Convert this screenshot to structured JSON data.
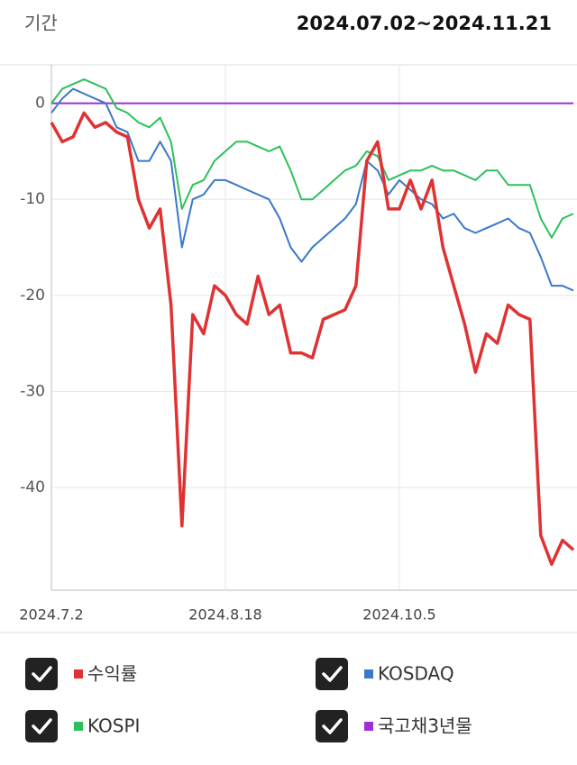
{
  "header": {
    "label": "기간",
    "period": "2024.07.02~2024.11.21"
  },
  "chart_data": {
    "type": "line",
    "categories": [
      "2024.7.2",
      null,
      null,
      null,
      null,
      null,
      null,
      null,
      null,
      null,
      null,
      null,
      null,
      null,
      null,
      null,
      "2024.8.18",
      null,
      null,
      null,
      null,
      null,
      null,
      null,
      null,
      null,
      null,
      null,
      null,
      null,
      null,
      null,
      "2024.10.5",
      null,
      null,
      null,
      null,
      null,
      null,
      null,
      null,
      null,
      null,
      null,
      null,
      null,
      null,
      null,
      null
    ],
    "series": [
      {
        "name": "수익률",
        "color": "#e03232",
        "values": [
          -2,
          -4,
          -3.5,
          -1,
          -2.5,
          -2,
          -3,
          -3.5,
          -10,
          -13,
          -11,
          -21,
          -44,
          -22,
          -24,
          -19,
          -20,
          -22,
          -23,
          -18,
          -22,
          -21,
          -26,
          -26,
          -26.5,
          -22.5,
          -22,
          -21.5,
          -19,
          -6,
          -4,
          -11,
          -11,
          -8,
          -11,
          -8,
          -15,
          -19,
          -23,
          -28,
          -24,
          -25,
          -21,
          -22,
          -22.5,
          -45,
          -48,
          -45.5,
          -46.5
        ]
      },
      {
        "name": "KOSDAQ",
        "color": "#3a78c8",
        "values": [
          -1,
          0.5,
          1.5,
          1,
          0.5,
          0,
          -2.5,
          -3,
          -6,
          -6,
          -4,
          -6,
          -15,
          -10,
          -9.5,
          -8,
          -8,
          -8.5,
          -9,
          -9.5,
          -10,
          -12,
          -15,
          -16.5,
          -15,
          -14,
          -13,
          -12,
          -10.5,
          -6,
          -7,
          -9.5,
          -8,
          -9,
          -10,
          -10.5,
          -12,
          -11.5,
          -13,
          -13.5,
          -13,
          -12.5,
          -12,
          -13,
          -13.5,
          -16,
          -19,
          -19,
          -19.5
        ]
      },
      {
        "name": "KOSPI",
        "color": "#2ec05a",
        "values": [
          0,
          1.5,
          2,
          2.5,
          2,
          1.5,
          -0.5,
          -1,
          -2,
          -2.5,
          -1.5,
          -4,
          -11,
          -8.5,
          -8,
          -6,
          -5,
          -4,
          -4,
          -4.5,
          -5,
          -4.5,
          -7,
          -10,
          -10,
          -9,
          -8,
          -7,
          -6.5,
          -5,
          -5.5,
          -8,
          -7.5,
          -7,
          -7,
          -6.5,
          -7,
          -7,
          -7.5,
          -8,
          -7,
          -7,
          -8.5,
          -8.5,
          -8.5,
          -12,
          -14,
          -12,
          -11.5
        ]
      },
      {
        "name": "국고채3년물",
        "color": "#9b30d9",
        "values": [
          0,
          0,
          0,
          0,
          0,
          0,
          0,
          0,
          0,
          0,
          0,
          0,
          0,
          0,
          0,
          0,
          0,
          0,
          0,
          0,
          0,
          0,
          0,
          0,
          0,
          0,
          0,
          0,
          0,
          0,
          0,
          0,
          0,
          0,
          0,
          0,
          0,
          0,
          0,
          0,
          0,
          0,
          0,
          0,
          0,
          0,
          0,
          0,
          0
        ]
      }
    ],
    "ylim": [
      -50.7,
      4
    ],
    "yticks": [
      0,
      -10,
      -20,
      -30,
      -40
    ],
    "grid": true
  }
}
